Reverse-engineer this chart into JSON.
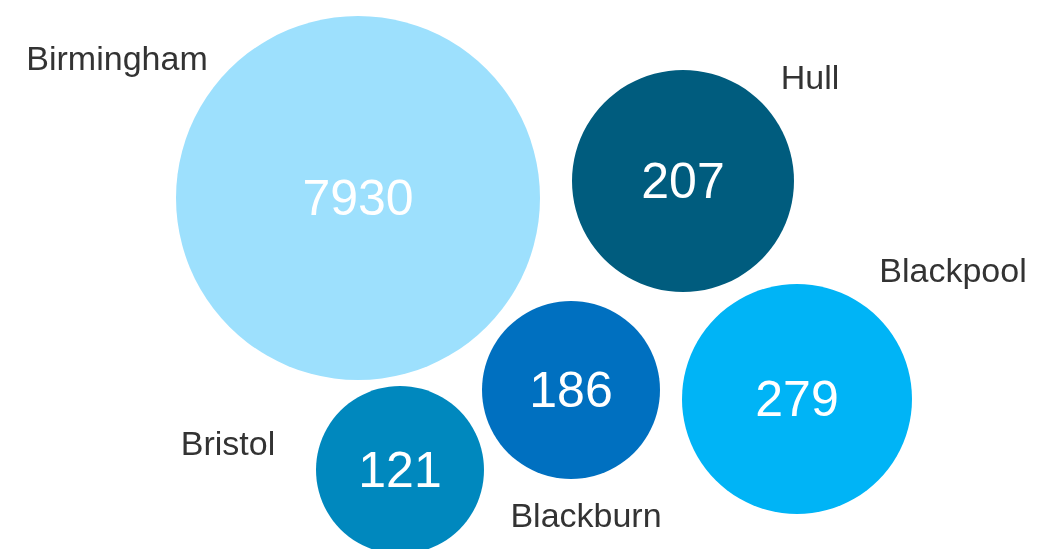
{
  "chart_data": {
    "type": "other",
    "categories": [
      "Birmingham",
      "Hull",
      "Blackpool",
      "Blackburn",
      "Bristol"
    ],
    "values": [
      7930,
      207,
      279,
      186,
      121
    ],
    "colors": [
      "#9de0fd",
      "#005c7e",
      "#00b4f6",
      "#0070c0",
      "#0088be"
    ],
    "data_labels": true
  }
}
